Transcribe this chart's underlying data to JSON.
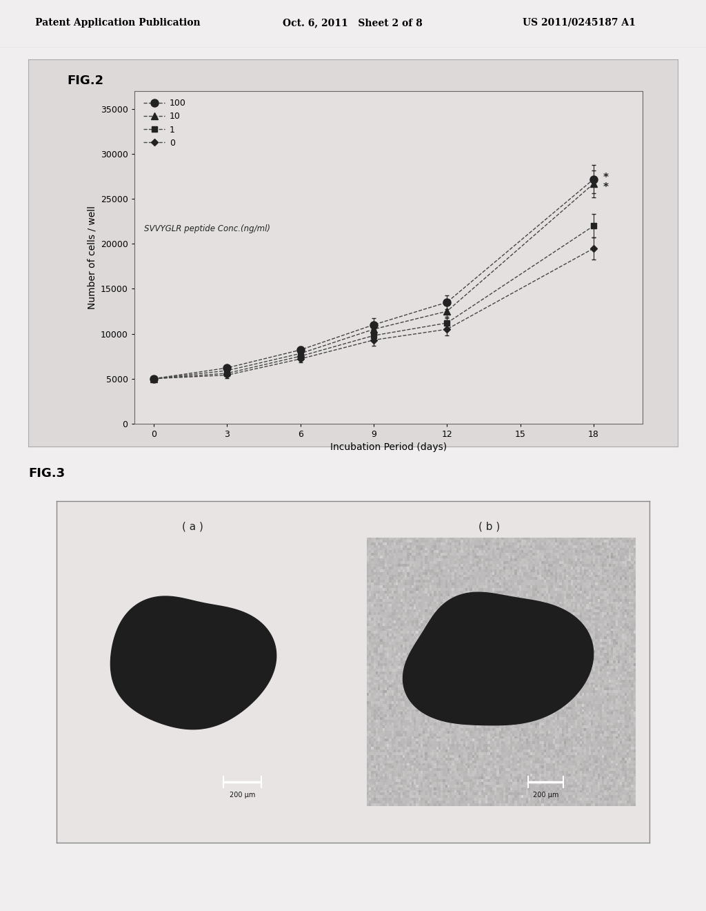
{
  "header_left": "Patent Application Publication",
  "header_mid": "Oct. 6, 2011   Sheet 2 of 8",
  "header_right": "US 2011/0245187 A1",
  "fig2_label": "FIG.2",
  "fig3_label": "FIG.3",
  "xlabel": "Incubation Period (days)",
  "ylabel": "Number of cells / well",
  "legend_label": "SVVYGLR peptide Conc.(ng/ml)",
  "legend_entries": [
    "100",
    "10",
    "1",
    "0"
  ],
  "x_ticks": [
    0,
    3,
    6,
    9,
    12,
    15,
    18
  ],
  "ylim": [
    0,
    37000
  ],
  "y_ticks": [
    0,
    5000,
    10000,
    15000,
    20000,
    25000,
    30000,
    35000
  ],
  "series": {
    "100": {
      "x": [
        0,
        3,
        6,
        9,
        12,
        18
      ],
      "y": [
        5000,
        6200,
        8200,
        11000,
        13500,
        27200
      ],
      "yerr": [
        250,
        350,
        400,
        700,
        800,
        1600
      ],
      "marker": "o",
      "markersize": 8
    },
    "10": {
      "x": [
        0,
        3,
        6,
        9,
        12,
        18
      ],
      "y": [
        5000,
        5900,
        7800,
        10500,
        12500,
        26700
      ],
      "yerr": [
        250,
        350,
        400,
        650,
        750,
        1500
      ],
      "marker": "^",
      "markersize": 7
    },
    "1": {
      "x": [
        0,
        3,
        6,
        9,
        12,
        18
      ],
      "y": [
        5000,
        5600,
        7500,
        9800,
        11200,
        22000
      ],
      "yerr": [
        250,
        350,
        400,
        600,
        700,
        1300
      ],
      "marker": "s",
      "markersize": 6
    },
    "0": {
      "x": [
        0,
        3,
        6,
        9,
        12,
        18
      ],
      "y": [
        5000,
        5400,
        7200,
        9300,
        10500,
        19500
      ],
      "yerr": [
        250,
        350,
        400,
        600,
        700,
        1200
      ],
      "marker": "D",
      "markersize": 5
    }
  },
  "page_bg": "#f0eeee",
  "panel_bg": "#ddd9d9",
  "plot_bg": "#e4e0e0",
  "img_a_bg": "#c8c4c4",
  "img_b_bg": "#9a9898",
  "fig3_inner_bg": "#e8e4e4",
  "fig3_a_label": "( a )",
  "fig3_b_label": "( b )",
  "scale_bar_label": "200 μm",
  "line_color": "#444444",
  "marker_color": "#222222"
}
